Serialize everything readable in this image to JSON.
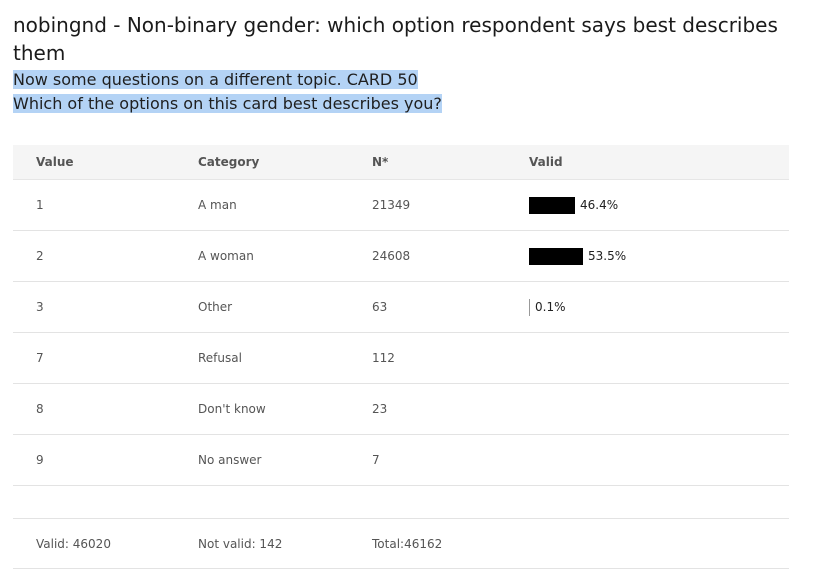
{
  "variable": {
    "title": "nobingnd - Non-binary gender: which option respondent says best describes them",
    "question_line1": "Now some questions on a different topic. CARD 50",
    "question_line2": "Which of the options on this card best describes you?"
  },
  "table": {
    "headers": {
      "value": "Value",
      "category": "Category",
      "n": "N*",
      "valid": "Valid"
    },
    "rows": [
      {
        "value": "1",
        "category": "A man",
        "n": "21349",
        "valid_pct": 46.4,
        "valid_label": "46.4%"
      },
      {
        "value": "2",
        "category": "A woman",
        "n": "24608",
        "valid_pct": 53.5,
        "valid_label": "53.5%"
      },
      {
        "value": "3",
        "category": "Other",
        "n": "63",
        "valid_pct": 0.1,
        "valid_label": "0.1%"
      },
      {
        "value": "7",
        "category": "Refusal",
        "n": "112",
        "valid_pct": null,
        "valid_label": ""
      },
      {
        "value": "8",
        "category": "Don't know",
        "n": "23",
        "valid_pct": null,
        "valid_label": ""
      },
      {
        "value": "9",
        "category": "No answer",
        "n": "7",
        "valid_pct": null,
        "valid_label": ""
      }
    ],
    "footer": {
      "valid": "Valid: 46020",
      "not_valid": "Not valid: 142",
      "total": "Total:46162"
    }
  },
  "colors": {
    "bar": "#000000",
    "header_bg": "#f5f5f5",
    "highlight": "#b4d3f5"
  }
}
